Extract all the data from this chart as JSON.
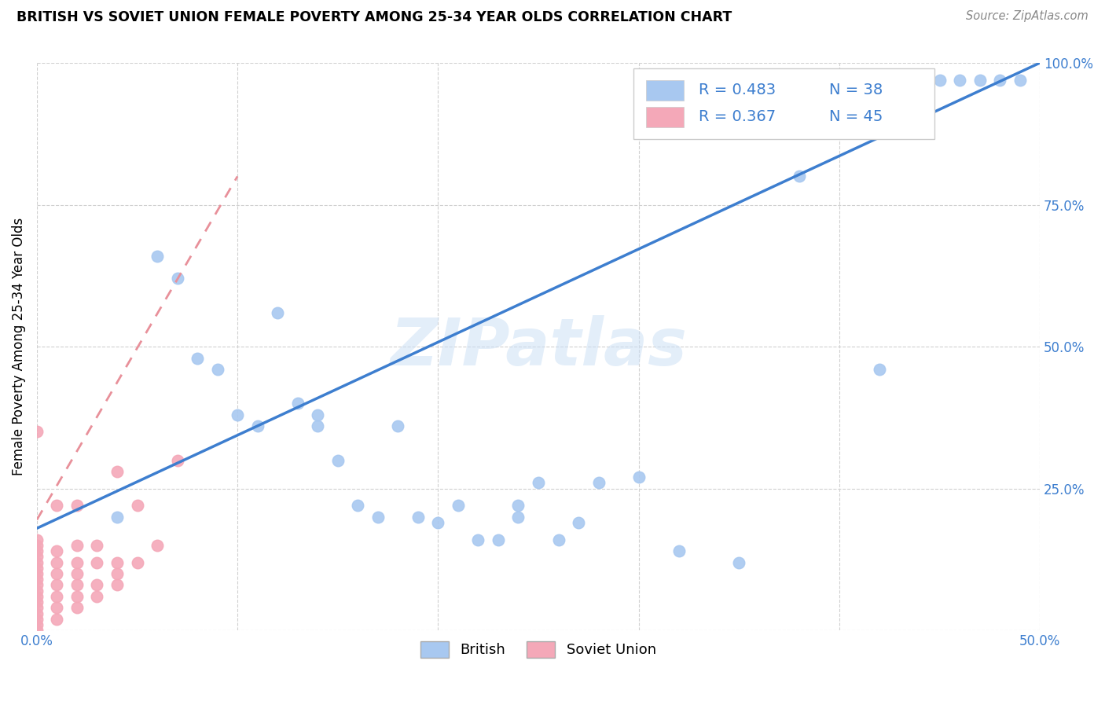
{
  "title": "BRITISH VS SOVIET UNION FEMALE POVERTY AMONG 25-34 YEAR OLDS CORRELATION CHART",
  "source": "Source: ZipAtlas.com",
  "ylabel": "Female Poverty Among 25-34 Year Olds",
  "xlim": [
    0,
    0.5
  ],
  "ylim": [
    0,
    1.0
  ],
  "british_color": "#a8c8f0",
  "soviet_color": "#f4a8b8",
  "british_line_color": "#3d7ecf",
  "soviet_line_color": "#e8909a",
  "soviet_line_dash": [
    5,
    4
  ],
  "british_R": 0.483,
  "british_N": 38,
  "soviet_R": 0.367,
  "soviet_N": 45,
  "watermark": "ZIPatlas",
  "british_x": [
    0.04,
    0.06,
    0.07,
    0.08,
    0.09,
    0.1,
    0.11,
    0.12,
    0.13,
    0.14,
    0.14,
    0.15,
    0.16,
    0.17,
    0.18,
    0.19,
    0.2,
    0.21,
    0.22,
    0.23,
    0.24,
    0.24,
    0.25,
    0.26,
    0.27,
    0.28,
    0.3,
    0.32,
    0.35,
    0.38,
    0.42,
    0.43,
    0.44,
    0.45,
    0.46,
    0.47,
    0.48,
    0.49
  ],
  "british_y": [
    0.2,
    0.66,
    0.62,
    0.48,
    0.46,
    0.38,
    0.36,
    0.56,
    0.4,
    0.36,
    0.38,
    0.3,
    0.22,
    0.2,
    0.36,
    0.2,
    0.19,
    0.22,
    0.16,
    0.16,
    0.22,
    0.2,
    0.26,
    0.16,
    0.19,
    0.26,
    0.27,
    0.14,
    0.12,
    0.8,
    0.46,
    0.97,
    0.97,
    0.97,
    0.97,
    0.97,
    0.97,
    0.97
  ],
  "soviet_x": [
    0.0,
    0.0,
    0.0,
    0.0,
    0.0,
    0.0,
    0.0,
    0.0,
    0.0,
    0.0,
    0.0,
    0.0,
    0.0,
    0.0,
    0.0,
    0.0,
    0.0,
    0.0,
    0.01,
    0.01,
    0.01,
    0.01,
    0.01,
    0.01,
    0.01,
    0.01,
    0.02,
    0.02,
    0.02,
    0.02,
    0.02,
    0.02,
    0.02,
    0.03,
    0.03,
    0.03,
    0.03,
    0.04,
    0.04,
    0.04,
    0.04,
    0.05,
    0.05,
    0.06,
    0.07
  ],
  "soviet_y": [
    0.0,
    0.01,
    0.02,
    0.03,
    0.04,
    0.05,
    0.06,
    0.07,
    0.08,
    0.09,
    0.1,
    0.11,
    0.12,
    0.13,
    0.14,
    0.15,
    0.16,
    0.35,
    0.02,
    0.04,
    0.06,
    0.08,
    0.1,
    0.12,
    0.14,
    0.22,
    0.04,
    0.06,
    0.08,
    0.1,
    0.12,
    0.15,
    0.22,
    0.06,
    0.08,
    0.12,
    0.15,
    0.08,
    0.1,
    0.12,
    0.28,
    0.12,
    0.22,
    0.15,
    0.3
  ],
  "british_line_x": [
    0.0,
    0.5
  ],
  "british_line_y": [
    0.18,
    1.0
  ],
  "soviet_line_x": [
    0.0,
    0.1
  ],
  "soviet_line_y": [
    0.195,
    0.8
  ]
}
